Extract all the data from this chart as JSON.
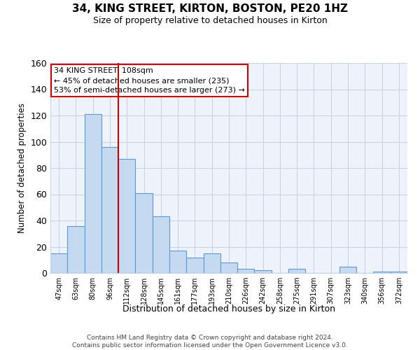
{
  "title": "34, KING STREET, KIRTON, BOSTON, PE20 1HZ",
  "subtitle": "Size of property relative to detached houses in Kirton",
  "xlabel": "Distribution of detached houses by size in Kirton",
  "ylabel": "Number of detached properties",
  "bar_labels": [
    "47sqm",
    "63sqm",
    "80sqm",
    "96sqm",
    "112sqm",
    "128sqm",
    "145sqm",
    "161sqm",
    "177sqm",
    "193sqm",
    "210sqm",
    "226sqm",
    "242sqm",
    "258sqm",
    "275sqm",
    "291sqm",
    "307sqm",
    "323sqm",
    "340sqm",
    "356sqm",
    "372sqm"
  ],
  "bar_values": [
    15,
    36,
    121,
    96,
    87,
    61,
    43,
    17,
    12,
    15,
    8,
    3,
    2,
    0,
    3,
    0,
    0,
    5,
    0,
    1,
    1
  ],
  "bar_color": "#c5d9f0",
  "bar_edge_color": "#5b9bd5",
  "vline_color": "#cc0000",
  "vline_index": 4,
  "ylim": [
    0,
    160
  ],
  "yticks": [
    0,
    20,
    40,
    60,
    80,
    100,
    120,
    140,
    160
  ],
  "annotation_title": "34 KING STREET: 108sqm",
  "annotation_line1": "← 45% of detached houses are smaller (235)",
  "annotation_line2": "53% of semi-detached houses are larger (273) →",
  "footer1": "Contains HM Land Registry data © Crown copyright and database right 2024.",
  "footer2": "Contains public sector information licensed under the Open Government Licence v3.0.",
  "background_color": "#ffffff",
  "grid_color": "#c8d4e3",
  "plot_bg_color": "#eef3fb"
}
